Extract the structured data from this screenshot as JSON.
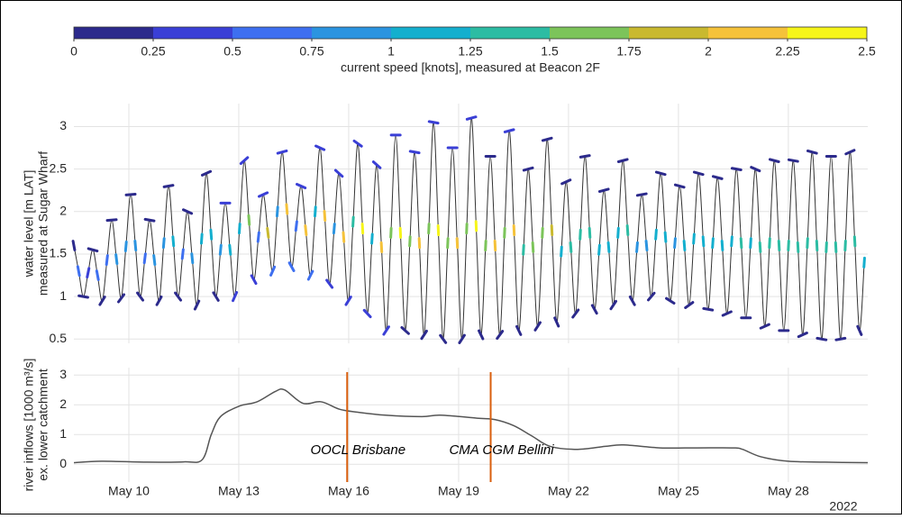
{
  "chart_data": [
    {
      "type": "line",
      "ylabel_lines": [
        "water level [m LAT]",
        "measured at Sugar Wharf"
      ],
      "colorbar": {
        "ticks": [
          0,
          0.25,
          0.5,
          0.75,
          1,
          1.25,
          1.5,
          1.75,
          2,
          2.25,
          2.5
        ],
        "colors": [
          "#2c2a8c",
          "#3a3fd6",
          "#3e6ff0",
          "#2b94e0",
          "#14afce",
          "#2cbca3",
          "#7cc45a",
          "#c9b92f",
          "#f5c23a",
          "#f6f51a"
        ],
        "label": "current speed [knots], measured at Beacon 2F"
      },
      "xlim": [
        "2022-05-08T12:00",
        "2022-05-30T04:00"
      ],
      "ylim": [
        0.45,
        3.27
      ],
      "yticks": [
        0.5,
        1,
        1.5,
        2,
        2.5,
        3
      ],
      "grid": true,
      "x": [
        "2022-05-08T12:00",
        "2022-05-08T15:06",
        "2022-05-08T18:12",
        "2022-05-08T21:18",
        "2022-05-09T00:24",
        "2022-05-09T03:30",
        "2022-05-09T06:36",
        "2022-05-09T09:42",
        "2022-05-09T12:48",
        "2022-05-09T15:54",
        "2022-05-09T19:00",
        "2022-05-09T22:06",
        "2022-05-10T01:12",
        "2022-05-10T04:18",
        "2022-05-10T07:24",
        "2022-05-10T10:30",
        "2022-05-10T13:36",
        "2022-05-10T16:42",
        "2022-05-10T19:48",
        "2022-05-10T22:54",
        "2022-05-11T02:00",
        "2022-05-11T05:06",
        "2022-05-11T08:12",
        "2022-05-11T11:18",
        "2022-05-11T14:24",
        "2022-05-11T17:30",
        "2022-05-11T20:36",
        "2022-05-11T23:42",
        "2022-05-12T02:48",
        "2022-05-12T05:54",
        "2022-05-12T09:00",
        "2022-05-12T12:06",
        "2022-05-12T15:12",
        "2022-05-12T18:18",
        "2022-05-12T21:24",
        "2022-05-13T00:30",
        "2022-05-13T03:36",
        "2022-05-13T06:42",
        "2022-05-13T09:48",
        "2022-05-13T12:54",
        "2022-05-13T16:00",
        "2022-05-13T19:06",
        "2022-05-13T22:12",
        "2022-05-14T01:18",
        "2022-05-14T04:24",
        "2022-05-14T07:30",
        "2022-05-14T10:36",
        "2022-05-14T13:42",
        "2022-05-14T16:48",
        "2022-05-14T19:54",
        "2022-05-14T23:00",
        "2022-05-15T02:06",
        "2022-05-15T05:12",
        "2022-05-15T08:18",
        "2022-05-15T11:24",
        "2022-05-15T14:30",
        "2022-05-15T17:36",
        "2022-05-15T20:42",
        "2022-05-15T23:48",
        "2022-05-16T02:54",
        "2022-05-16T06:00",
        "2022-05-16T09:06",
        "2022-05-16T12:12",
        "2022-05-16T15:18",
        "2022-05-16T18:24",
        "2022-05-16T21:30",
        "2022-05-17T00:36",
        "2022-05-17T03:42",
        "2022-05-17T06:48",
        "2022-05-17T09:54",
        "2022-05-17T13:00",
        "2022-05-17T16:06",
        "2022-05-17T19:12",
        "2022-05-17T22:18",
        "2022-05-18T01:24",
        "2022-05-18T04:30",
        "2022-05-18T07:36",
        "2022-05-18T10:42",
        "2022-05-18T13:48",
        "2022-05-18T16:54",
        "2022-05-18T20:00",
        "2022-05-18T23:06",
        "2022-05-19T02:12",
        "2022-05-19T05:18",
        "2022-05-19T08:24",
        "2022-05-19T11:30",
        "2022-05-19T14:36",
        "2022-05-19T17:42",
        "2022-05-19T20:48",
        "2022-05-19T23:54",
        "2022-05-20T03:00",
        "2022-05-20T06:06",
        "2022-05-20T09:12",
        "2022-05-20T12:18",
        "2022-05-20T15:24",
        "2022-05-20T18:30",
        "2022-05-20T21:36",
        "2022-05-21T00:42",
        "2022-05-21T03:48",
        "2022-05-21T06:54",
        "2022-05-21T10:00",
        "2022-05-21T13:06",
        "2022-05-21T16:12",
        "2022-05-21T19:18",
        "2022-05-21T22:24",
        "2022-05-22T01:30",
        "2022-05-22T04:36",
        "2022-05-22T07:42",
        "2022-05-22T10:48",
        "2022-05-22T13:54",
        "2022-05-22T17:00",
        "2022-05-22T20:06",
        "2022-05-22T23:12",
        "2022-05-23T02:18",
        "2022-05-23T05:24",
        "2022-05-23T08:30",
        "2022-05-23T11:36",
        "2022-05-23T14:42",
        "2022-05-23T17:48",
        "2022-05-23T20:54",
        "2022-05-24T00:00",
        "2022-05-24T03:06",
        "2022-05-24T06:12",
        "2022-05-24T09:18",
        "2022-05-24T12:24",
        "2022-05-24T15:30",
        "2022-05-24T18:36",
        "2022-05-24T21:42",
        "2022-05-25T00:48",
        "2022-05-25T03:54",
        "2022-05-25T07:00",
        "2022-05-25T10:06",
        "2022-05-25T13:12",
        "2022-05-25T16:18",
        "2022-05-25T19:24",
        "2022-05-25T22:30",
        "2022-05-26T01:36",
        "2022-05-26T04:42",
        "2022-05-26T07:48",
        "2022-05-26T10:54",
        "2022-05-26T14:00",
        "2022-05-26T17:06",
        "2022-05-26T20:12",
        "2022-05-26T23:18",
        "2022-05-27T02:24",
        "2022-05-27T05:30",
        "2022-05-27T08:36",
        "2022-05-27T11:42",
        "2022-05-27T14:48",
        "2022-05-27T17:54",
        "2022-05-27T21:00",
        "2022-05-28T00:06",
        "2022-05-28T03:12",
        "2022-05-28T06:18",
        "2022-05-28T09:24",
        "2022-05-28T12:30",
        "2022-05-28T15:36",
        "2022-05-28T18:42",
        "2022-05-28T21:48",
        "2022-05-29T00:54",
        "2022-05-29T04:00",
        "2022-05-29T07:06",
        "2022-05-29T10:12",
        "2022-05-29T13:18",
        "2022-05-29T16:24",
        "2022-05-29T19:30",
        "2022-05-29T22:36",
        "2022-05-30T01:42"
      ],
      "series": [
        {
          "color": "#333333",
          "values": [
            1.6,
            1.3,
            1.0,
            1.28,
            1.55,
            1.25,
            0.95,
            1.43,
            1.9,
            1.44,
            0.98,
            1.59,
            2.2,
            1.6,
            1.0,
            1.45,
            1.9,
            1.43,
            0.95,
            1.63,
            2.3,
            1.65,
            1.0,
            1.5,
            2.0,
            1.45,
            0.9,
            1.68,
            2.45,
            1.73,
            1.0,
            1.55,
            2.1,
            1.55,
            1.0,
            1.8,
            2.6,
            1.9,
            1.2,
            1.7,
            2.2,
            1.75,
            1.3,
            2.0,
            2.7,
            2.03,
            1.35,
            1.83,
            2.3,
            1.78,
            1.25,
            2.0,
            2.75,
            1.95,
            1.15,
            1.8,
            2.45,
            1.7,
            0.95,
            1.88,
            2.8,
            1.8,
            0.8,
            1.68,
            2.55,
            1.58,
            0.6,
            1.75,
            2.9,
            1.75,
            0.6,
            1.65,
            2.7,
            1.63,
            0.55,
            1.8,
            3.05,
            1.78,
            0.5,
            1.63,
            2.75,
            1.63,
            0.5,
            1.8,
            3.1,
            1.83,
            0.55,
            1.6,
            2.65,
            1.6,
            0.55,
            1.75,
            2.95,
            1.78,
            0.6,
            1.55,
            2.5,
            1.58,
            0.65,
            1.75,
            2.85,
            1.78,
            0.7,
            1.53,
            2.35,
            1.58,
            0.8,
            1.73,
            2.65,
            1.75,
            0.85,
            1.55,
            2.25,
            1.58,
            0.9,
            1.75,
            2.6,
            1.78,
            0.95,
            1.58,
            2.2,
            1.6,
            1.0,
            1.73,
            2.45,
            1.7,
            0.95,
            1.63,
            2.3,
            1.6,
            0.9,
            1.68,
            2.45,
            1.65,
            0.85,
            1.63,
            2.4,
            1.6,
            0.8,
            1.65,
            2.5,
            1.63,
            0.75,
            1.63,
            2.5,
            1.58,
            0.65,
            1.63,
            2.6,
            1.6,
            0.6,
            1.6,
            2.6,
            1.58,
            0.55,
            1.63,
            2.7,
            1.6,
            0.5,
            1.58,
            2.65,
            1.58,
            0.5,
            1.6,
            2.7,
            1.65,
            0.6,
            1.4
          ],
          "color_values": [
            0.15,
            0.5,
            0.1,
            0.4,
            0.2,
            0.5,
            0.1,
            0.65,
            0.2,
            0.75,
            0.1,
            0.85,
            0.15,
            0.95,
            0.1,
            0.65,
            0.15,
            0.8,
            0.1,
            0.95,
            0.2,
            1.05,
            0.1,
            0.7,
            0.2,
            0.9,
            0.15,
            1.1,
            0.2,
            1.15,
            0.1,
            0.8,
            0.25,
            1.2,
            0.3,
            1.1,
            0.3,
            1.5,
            0.35,
            0.7,
            0.4,
            1.9,
            0.5,
            0.9,
            0.3,
            2.1,
            0.5,
            0.7,
            0.4,
            2.1,
            0.5,
            1.0,
            0.3,
            2.2,
            0.45,
            0.9,
            0.35,
            2.0,
            0.3,
            1.3,
            0.3,
            2.3,
            0.3,
            1.2,
            0.3,
            2.2,
            0.25,
            1.5,
            0.3,
            2.3,
            0.2,
            1.5,
            0.3,
            2.2,
            0.2,
            1.6,
            0.3,
            2.4,
            0.2,
            1.6,
            0.25,
            2.2,
            0.2,
            1.7,
            0.3,
            2.3,
            0.2,
            1.6,
            0.2,
            2.0,
            0.2,
            1.6,
            0.25,
            2.1,
            0.2,
            1.4,
            0.2,
            1.7,
            0.15,
            1.5,
            0.2,
            1.8,
            0.15,
            1.2,
            0.15,
            1.3,
            0.1,
            1.25,
            0.2,
            1.4,
            0.1,
            1.0,
            0.15,
            1.1,
            0.1,
            1.2,
            0.15,
            1.3,
            0.1,
            0.9,
            0.1,
            0.95,
            0.1,
            1.0,
            0.15,
            1.15,
            0.1,
            0.95,
            0.15,
            1.05,
            0.1,
            1.05,
            0.15,
            1.2,
            0.1,
            1.1,
            0.15,
            1.15,
            0.1,
            1.1,
            0.15,
            1.25,
            0.1,
            1.2,
            0.2,
            1.3,
            0.1,
            1.25,
            0.15,
            1.35,
            0.1,
            1.3,
            0.2,
            1.4,
            0.1,
            1.3,
            0.2,
            1.45,
            0.1,
            1.35,
            0.2,
            1.4,
            0.1,
            1.35,
            0.2,
            1.4,
            0.1,
            1.2
          ]
        }
      ]
    },
    {
      "type": "line",
      "ylabel_lines": [
        "river inflows [1000 m³/s]",
        "ex. lower catchment"
      ],
      "xlim": [
        "2022-05-08T12:00",
        "2022-05-30T04:00"
      ],
      "ylim": [
        -0.6,
        3.25
      ],
      "yticks": [
        0,
        1,
        2,
        3
      ],
      "xticks": [
        {
          "value": "2022-05-10",
          "label": "May 10"
        },
        {
          "value": "2022-05-13",
          "label": "May 13"
        },
        {
          "value": "2022-05-16",
          "label": "May 16"
        },
        {
          "value": "2022-05-19",
          "label": "May 19"
        },
        {
          "value": "2022-05-22",
          "label": "May 22"
        },
        {
          "value": "2022-05-25",
          "label": "May 25"
        },
        {
          "value": "2022-05-28",
          "label": "May 28"
        }
      ],
      "x_year_label": "2022",
      "grid": true,
      "color": "#555555",
      "x": [
        "2022-05-08T12:00",
        "2022-05-09T06:00",
        "2022-05-10T12:00",
        "2022-05-11T12:00",
        "2022-05-12T00:00",
        "2022-05-12T06:00",
        "2022-05-12T12:00",
        "2022-05-13T00:00",
        "2022-05-13T12:00",
        "2022-05-14T00:00",
        "2022-05-14T06:00",
        "2022-05-14T18:00",
        "2022-05-15T06:00",
        "2022-05-15T18:00",
        "2022-05-16T06:00",
        "2022-05-17T00:00",
        "2022-05-18T00:00",
        "2022-05-18T12:00",
        "2022-05-19T12:00",
        "2022-05-20T00:00",
        "2022-05-20T12:00",
        "2022-05-21T00:00",
        "2022-05-21T12:00",
        "2022-05-22T06:00",
        "2022-05-23T00:00",
        "2022-05-23T12:00",
        "2022-05-24T12:00",
        "2022-05-25T12:00",
        "2022-05-26T12:00",
        "2022-05-26T18:00",
        "2022-05-27T06:00",
        "2022-05-28T00:00",
        "2022-05-29T00:00",
        "2022-05-30T04:00"
      ],
      "values": [
        0.05,
        0.1,
        0.07,
        0.08,
        0.15,
        1.0,
        1.6,
        1.95,
        2.1,
        2.45,
        2.5,
        2.05,
        2.1,
        1.85,
        1.75,
        1.65,
        1.6,
        1.65,
        1.55,
        1.5,
        1.3,
        0.95,
        0.6,
        0.5,
        0.6,
        0.65,
        0.55,
        0.55,
        0.55,
        0.5,
        0.25,
        0.1,
        0.07,
        0.05
      ],
      "vlines": [
        {
          "x": "2022-05-15T23:00",
          "label": "OOCL Brisbane",
          "color": "#d95f0e"
        },
        {
          "x": "2022-05-19T21:00",
          "label": "CMA CGM Bellini",
          "color": "#d95f0e"
        }
      ]
    }
  ]
}
